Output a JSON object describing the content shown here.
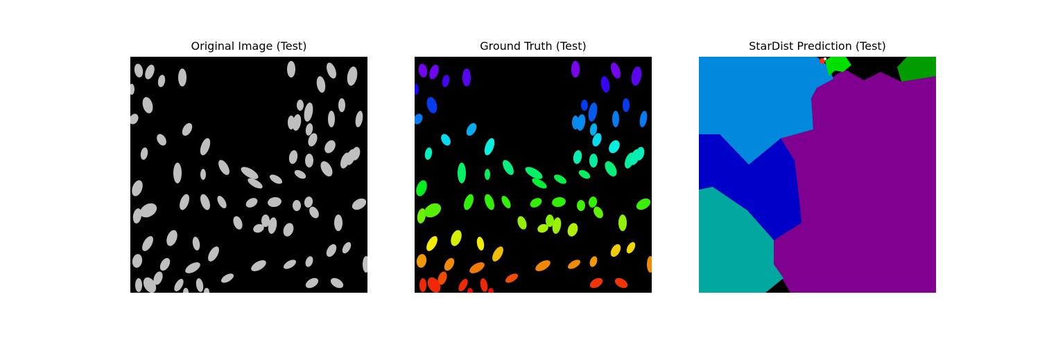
{
  "figure": {
    "panels": [
      {
        "title": "Original Image (Test)",
        "content": "grayscale-nuclei"
      },
      {
        "title": "Ground Truth (Test)",
        "content": "label-mask"
      },
      {
        "title": "StarDist Prediction (Test)",
        "content": "predicted-label-mask"
      }
    ]
  },
  "colors": {
    "background": "#000000",
    "nucleus_gray": "#bfbfbf",
    "prediction_regions": [
      "#0288dc",
      "#0000c8",
      "#00a8a0",
      "#800090",
      "#009c00",
      "#00e000"
    ]
  }
}
